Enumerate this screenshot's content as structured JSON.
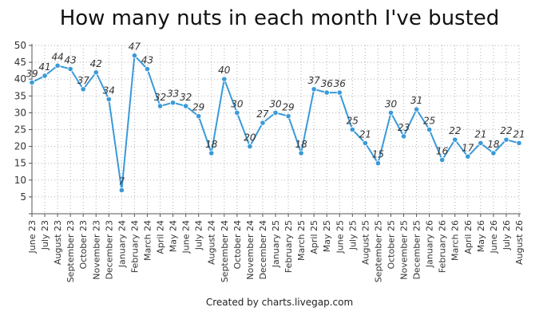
{
  "chart_data": {
    "type": "line",
    "title": "How many nuts in each month I've busted",
    "xlabel": "",
    "ylabel": "",
    "ylim": [
      0,
      50
    ],
    "yticks": [
      5,
      10,
      15,
      20,
      25,
      30,
      35,
      40,
      45,
      50
    ],
    "grid": true,
    "legend": "none",
    "categories": [
      "June 23",
      "July 23",
      "August 23",
      "September 23",
      "October 23",
      "November 23",
      "December 23",
      "January 24",
      "February 24",
      "March 24",
      "April 24",
      "May 24",
      "June 24",
      "July 24",
      "August 24",
      "September 24",
      "October 24",
      "November 24",
      "December 24",
      "January 25",
      "February 25",
      "March 25",
      "April 25",
      "May 25",
      "June 25",
      "July 25",
      "August 25",
      "September 25",
      "October 25",
      "November 25",
      "December 25",
      "January 26",
      "February 26",
      "March 26",
      "April 26",
      "May 26",
      "June 26",
      "July 26",
      "August 26"
    ],
    "values": [
      39,
      41,
      44,
      43,
      37,
      42,
      34,
      7,
      47,
      43,
      32,
      33,
      32,
      29,
      18,
      40,
      30,
      20,
      27,
      30,
      29,
      18,
      37,
      36,
      36,
      25,
      21,
      15,
      30,
      23,
      31,
      25,
      16,
      22,
      17,
      21,
      18,
      22,
      21
    ],
    "colors": {
      "line": "#3a9ad9",
      "point": "#3a9ad9",
      "grid": "#b0b0b0",
      "axis": "#555555"
    }
  },
  "credit": "Created by charts.livegap.com"
}
